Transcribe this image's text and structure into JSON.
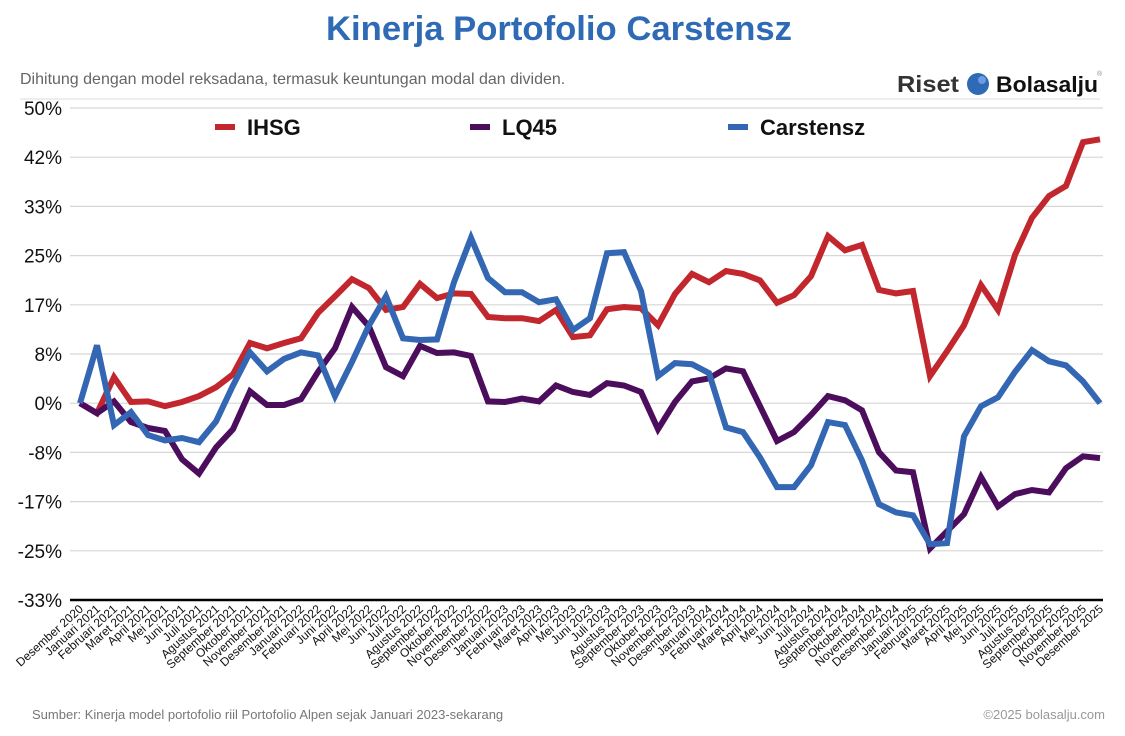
{
  "header": {
    "title": "Kinerja Portofolio Carstensz",
    "subtitle": "Dihitung dengan model reksadana, termasuk keuntungan modal dan dividen.",
    "logo": {
      "word1": "Riset",
      "word2": "Bolasalju",
      "mark": "®"
    }
  },
  "footer": {
    "source": "Sumber: Kinerja model portofolio riil Portofolio Alpen sejak Januari 2023-sekarang",
    "copyright": "©2025 bolasalju.com"
  },
  "chart_data": {
    "type": "line",
    "title": "Kinerja Portofolio Carstensz",
    "ylim": [
      -33.33,
      50
    ],
    "y_tick_labels": [
      "50%",
      "42%",
      "33%",
      "25%",
      "17%",
      "8%",
      "0%",
      "-8%",
      "-17%",
      "-25%",
      "-33%"
    ],
    "grid": true,
    "legend_placement": "top",
    "categories": [
      "Desember 2020",
      "Januari 2021",
      "Februari 2021",
      "Maret 2021",
      "April 2021",
      "Mei 2021",
      "Juni 2021",
      "Juli 2021",
      "Agustus 2021",
      "September 2021",
      "Oktober 2021",
      "November 2021",
      "Desember 2021",
      "Januari 2022",
      "Februari 2022",
      "Juni 2022",
      "April 2022",
      "Mei 2022",
      "Juni 2022",
      "Juli 2022",
      "Agustus 2022",
      "September 2022",
      "Oktober 2022",
      "November 2022",
      "Desember 2022",
      "Januari 2023",
      "Februari 2023",
      "Maret 2023",
      "April 2023",
      "Mei 2023",
      "Juni 2023",
      "Juli 2023",
      "Agustus 2023",
      "September 2023",
      "Oktober 2023",
      "November 2023",
      "Desember 2023",
      "Januari 2024",
      "Februari 2024",
      "Maret 2024",
      "April 2024",
      "Mei 2024",
      "Juni 2024",
      "Juli 2024",
      "Agustus 2024",
      "September 2024",
      "Oktober 2024",
      "November 2024",
      "Desember 2024",
      "Januari 2025",
      "Februari 2025",
      "Maret 2025",
      "April 2025",
      "Mei 2025",
      "Juni 2025",
      "Juli 2025",
      "Agustus 2025",
      "September 2025",
      "Oktober 2025",
      "November 2025",
      "Desember 2025"
    ],
    "series": [
      {
        "name": "IHSG",
        "color": "#c1272d",
        "values": [
          0,
          -1.7,
          4.4,
          0.2,
          0.3,
          -0.5,
          0.2,
          1.2,
          2.7,
          4.9,
          10.2,
          9.3,
          10.2,
          11,
          15.3,
          18.1,
          21,
          19.5,
          15.8,
          16.3,
          20.2,
          17.8,
          18.6,
          18.5,
          14.6,
          14.4,
          14.4,
          13.9,
          15.8,
          11.2,
          11.5,
          15.9,
          16.3,
          16.1,
          13.2,
          18.5,
          21.9,
          20.5,
          22.4,
          21.9,
          20.8,
          17,
          18.3,
          21.5,
          28.3,
          25.9,
          26.8,
          19.2,
          18.6,
          19,
          4.6,
          8.8,
          13.2,
          20,
          15.8,
          25.1,
          31.4,
          35.1,
          36.8,
          44.2,
          44.7
        ]
      },
      {
        "name": "LQ45",
        "color": "#4b0d5c",
        "values": [
          0,
          -1.7,
          0.3,
          -3.2,
          -4.2,
          -4.7,
          -9.5,
          -11.9,
          -7.5,
          -4.4,
          2,
          -0.3,
          -0.3,
          0.7,
          5.3,
          9.3,
          16.3,
          13,
          6.1,
          4.6,
          9.7,
          8.5,
          8.6,
          8,
          0.3,
          0.2,
          0.8,
          0.3,
          3,
          1.9,
          1.4,
          3.4,
          3,
          1.9,
          -4.4,
          0.2,
          3.7,
          4.2,
          5.9,
          5.4,
          -0.5,
          -6.4,
          -4.9,
          -2,
          1.2,
          0.5,
          -1.2,
          -8.3,
          -11.4,
          -11.7,
          -24.6,
          -21.7,
          -18.8,
          -12.5,
          -17.5,
          -15.4,
          -14.7,
          -15.1,
          -11,
          -9,
          -9.3
        ]
      },
      {
        "name": "Carstensz",
        "color": "#3366b3",
        "values": [
          0,
          9.8,
          -3.7,
          -1.5,
          -5.4,
          -6.3,
          -5.9,
          -6.6,
          -3.1,
          3,
          8.6,
          5.4,
          7.5,
          8.6,
          8.1,
          1.2,
          7,
          13.2,
          18.1,
          11,
          10.7,
          10.8,
          20.5,
          28,
          21.2,
          18.8,
          18.8,
          17.1,
          17.6,
          12.4,
          14.4,
          25.4,
          25.6,
          19,
          4.6,
          6.8,
          6.6,
          5.1,
          -4.1,
          -4.9,
          -9.2,
          -14.2,
          -14.2,
          -10.5,
          -3.2,
          -3.7,
          -9.7,
          -17.1,
          -18.5,
          -19,
          -23.9,
          -23.7,
          -5.6,
          -0.5,
          1,
          5.3,
          9,
          7.1,
          6.4,
          3.7,
          0
        ]
      }
    ]
  }
}
